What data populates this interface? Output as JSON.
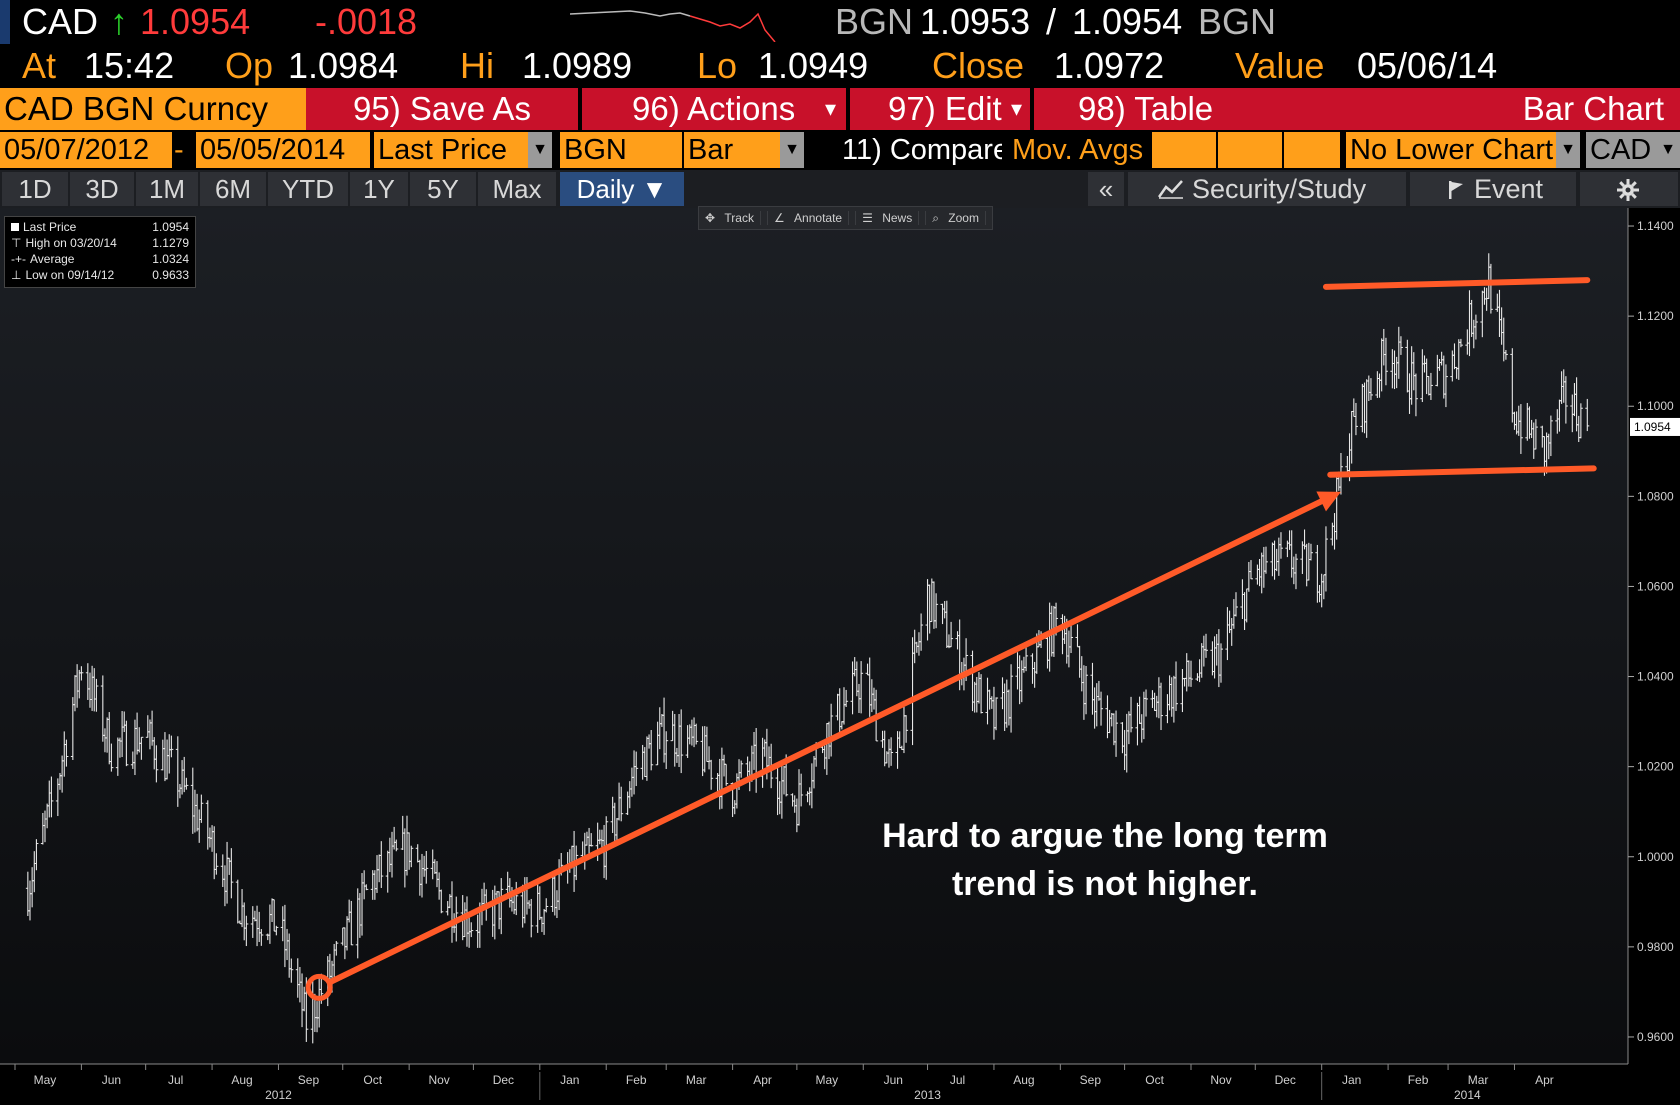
{
  "header": {
    "ticker": "CAD",
    "arrow": "↑",
    "last": "1.0954",
    "change": "-.0018",
    "source_left": "BGN",
    "bid": "1.0953",
    "sep": "/",
    "ask": "1.0954",
    "source_right": "BGN",
    "at_label": "At",
    "at_value": "15:42",
    "op_label": "Op",
    "op_value": "1.0984",
    "hi_label": "Hi",
    "hi_value": "1.0989",
    "lo_label": "Lo",
    "lo_value": "1.0949",
    "close_label": "Close",
    "close_value": "1.0972",
    "value_label": "Value",
    "value_value": "05/06/14"
  },
  "toolbar": {
    "security": "CAD BGN Curncy",
    "save_as": "95) Save As",
    "actions": "96) Actions",
    "edit": "97) Edit",
    "table": "98) Table",
    "chart_type": "Bar Chart",
    "dropdown_glyph": "▾"
  },
  "controls": {
    "start_date": "05/07/2012",
    "dash": "-",
    "end_date": "05/05/2014",
    "field": "Last Price",
    "source": "BGN",
    "style": "Bar",
    "compare": "11) Compare",
    "mov_avgs": "Mov. Avgs",
    "lower_chart": "No Lower Chart",
    "currency": "CAD",
    "dd": "▼"
  },
  "periods": {
    "tabs": [
      "1D",
      "3D",
      "1M",
      "6M",
      "YTD",
      "1Y",
      "5Y",
      "Max"
    ],
    "selected": "Daily ▼",
    "collapse": "«",
    "security_study": "Security/Study",
    "event": "Event",
    "settings_icon": "gear-icon"
  },
  "tools": [
    "Track",
    "Annotate",
    "News",
    "Zoom"
  ],
  "legend": [
    {
      "label": "Last Price",
      "value": "1.0954"
    },
    {
      "label": "High on 03/20/14",
      "value": "1.1279"
    },
    {
      "label": "Average",
      "value": "1.0324"
    },
    {
      "label": "Low on 09/14/12",
      "value": "0.9633"
    }
  ],
  "annotation": "Hard to argue the long term trend is not higher.",
  "colors": {
    "amber": "#ff9f1a",
    "red_bar": "#c8112a",
    "trend": "#ff5a28",
    "chart_bg": "#14161a"
  },
  "chart_data": {
    "type": "bar",
    "style": "OHLC daily bars",
    "ylim": [
      0.954,
      1.144
    ],
    "yticks": [
      "1.1400",
      "1.1200",
      "1.1000",
      "1.0800",
      "1.0600",
      "1.0400",
      "1.0200",
      "1.0000",
      "0.9800",
      "0.9600"
    ],
    "last_price_tag": "1.0954",
    "x_months": [
      "May",
      "Jun",
      "Jul",
      "Aug",
      "Sep",
      "Oct",
      "Nov",
      "Dec",
      "Jan",
      "Feb",
      "Mar",
      "Apr",
      "May",
      "Jun",
      "Jul",
      "Aug",
      "Sep",
      "Oct",
      "Nov",
      "Dec",
      "Jan",
      "Feb",
      "Mar",
      "Apr"
    ],
    "x_years": [
      "2012",
      "2013",
      "2014"
    ],
    "series_points": [
      [
        "2012-05-07",
        0.993
      ],
      [
        "2012-05-20",
        1.015
      ],
      [
        "2012-06-01",
        1.043
      ],
      [
        "2012-06-15",
        1.024
      ],
      [
        "2012-07-01",
        1.027
      ],
      [
        "2012-07-15",
        1.018
      ],
      [
        "2012-08-01",
        1.003
      ],
      [
        "2012-08-15",
        0.988
      ],
      [
        "2012-09-01",
        0.985
      ],
      [
        "2012-09-14",
        0.9633
      ],
      [
        "2012-10-01",
        0.98
      ],
      [
        "2012-10-15",
        0.995
      ],
      [
        "2012-11-01",
        1.002
      ],
      [
        "2012-11-15",
        0.992
      ],
      [
        "2012-12-01",
        0.985
      ],
      [
        "2012-12-15",
        0.99
      ],
      [
        "2013-01-01",
        0.988
      ],
      [
        "2013-01-15",
        0.997
      ],
      [
        "2013-02-01",
        1.003
      ],
      [
        "2013-02-15",
        1.02
      ],
      [
        "2013-03-01",
        1.028
      ],
      [
        "2013-03-15",
        1.024
      ],
      [
        "2013-04-01",
        1.015
      ],
      [
        "2013-04-15",
        1.022
      ],
      [
        "2013-05-01",
        1.012
      ],
      [
        "2013-05-15",
        1.028
      ],
      [
        "2013-06-01",
        1.04
      ],
      [
        "2013-06-15",
        1.018
      ],
      [
        "2013-07-01",
        1.058
      ],
      [
        "2013-07-15",
        1.045
      ],
      [
        "2013-08-01",
        1.03
      ],
      [
        "2013-08-15",
        1.04
      ],
      [
        "2013-09-01",
        1.053
      ],
      [
        "2013-09-15",
        1.035
      ],
      [
        "2013-10-01",
        1.027
      ],
      [
        "2013-10-15",
        1.034
      ],
      [
        "2013-11-01",
        1.04
      ],
      [
        "2013-11-15",
        1.045
      ],
      [
        "2013-12-01",
        1.063
      ],
      [
        "2013-12-15",
        1.066
      ],
      [
        "2014-01-01",
        1.063
      ],
      [
        "2014-01-15",
        1.095
      ],
      [
        "2014-02-01",
        1.113
      ],
      [
        "2014-02-15",
        1.104
      ],
      [
        "2014-03-01",
        1.108
      ],
      [
        "2014-03-20",
        1.1279
      ],
      [
        "2014-04-01",
        1.098
      ],
      [
        "2014-04-15",
        1.09
      ],
      [
        "2014-04-25",
        1.102
      ],
      [
        "2014-05-05",
        1.0954
      ]
    ],
    "overlays": [
      {
        "name": "trend-arrow",
        "from": [
          "2012-09-20",
          0.971
        ],
        "to": [
          "2014-01-10",
          1.081
        ]
      },
      {
        "name": "resistance-line",
        "from": [
          "2014-01-03",
          1.1265
        ],
        "to": [
          "2014-05-05",
          1.128
        ]
      },
      {
        "name": "support-line",
        "from": [
          "2014-01-05",
          1.0848
        ],
        "to": [
          "2014-05-08",
          1.0862
        ]
      }
    ]
  }
}
